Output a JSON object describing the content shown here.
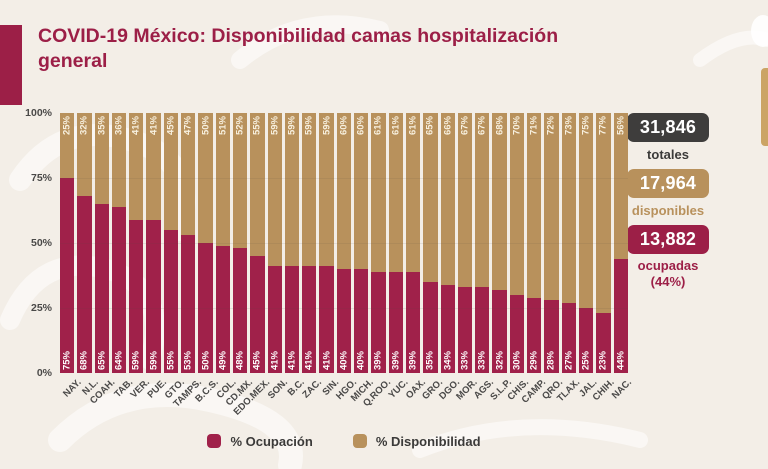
{
  "page": {
    "title_line1": "COVID-19 México: Disponibilidad camas hospitalización",
    "title_line2": "general"
  },
  "chart_data": {
    "type": "bar",
    "stacked": true,
    "title": "COVID-19 México: Disponibilidad camas hospitalización general",
    "categories": [
      "NAY.",
      "N.L.",
      "COAH.",
      "TAB.",
      "VER.",
      "PUE.",
      "GTO.",
      "TAMPS.",
      "B.C.S.",
      "COL.",
      "CD.MX.",
      "EDO.MEX.",
      "SON.",
      "B.C.",
      "ZAC.",
      "SIN.",
      "HGO.",
      "MICH.",
      "Q.ROO.",
      "YUC.",
      "OAX.",
      "GRO.",
      "DGO.",
      "MOR.",
      "AGS.",
      "S.L.P.",
      "CHIS.",
      "CAMP.",
      "QRO.",
      "TLAX.",
      "JAL.",
      "CHIH.",
      "NAC."
    ],
    "series": [
      {
        "name": "% Ocupación",
        "color": "#a0214a",
        "values": [
          75,
          68,
          65,
          64,
          59,
          59,
          55,
          53,
          50,
          49,
          48,
          45,
          41,
          41,
          41,
          41,
          40,
          40,
          39,
          39,
          39,
          35,
          34,
          33,
          33,
          32,
          30,
          29,
          28,
          27,
          25,
          23,
          44
        ]
      },
      {
        "name": "% Disponibilidad",
        "color": "#b8915c",
        "values": [
          25,
          32,
          35,
          36,
          41,
          41,
          45,
          47,
          50,
          51,
          52,
          55,
          59,
          59,
          59,
          59,
          60,
          60,
          61,
          61,
          61,
          65,
          66,
          67,
          67,
          68,
          70,
          71,
          72,
          73,
          75,
          77,
          56
        ]
      }
    ],
    "y_ticks": [
      "0%",
      "25%",
      "50%",
      "75%",
      "100%"
    ],
    "ylim": [
      0,
      100
    ],
    "grid": "subtle horizontal at 25/50/75",
    "legend_position": "bottom-center",
    "value_labels": "inside bars, rotated 90°, suffixed with %"
  },
  "legend": {
    "items": [
      {
        "label": "% Ocupación",
        "color": "#a0214a"
      },
      {
        "label": "% Disponibilidad",
        "color": "#b8915c"
      }
    ]
  },
  "stats": {
    "totales": {
      "value": "31,846",
      "label": "totales",
      "box_color": "#3e3d3c",
      "label_color": "#3b3a39"
    },
    "disponibles": {
      "value": "17,964",
      "label": "disponibles",
      "box_color": "#b8915c",
      "label_color": "#b8915c"
    },
    "ocupadas": {
      "value": "13,882",
      "label": "ocupadas",
      "sublabel": "(44%)",
      "box_color": "#9c1f47",
      "label_color": "#9c1f47"
    }
  },
  "colors": {
    "background": "#f3eee7",
    "accent_maroon": "#9c1f47",
    "tan": "#b8915c",
    "axis_text": "#4a4948"
  }
}
